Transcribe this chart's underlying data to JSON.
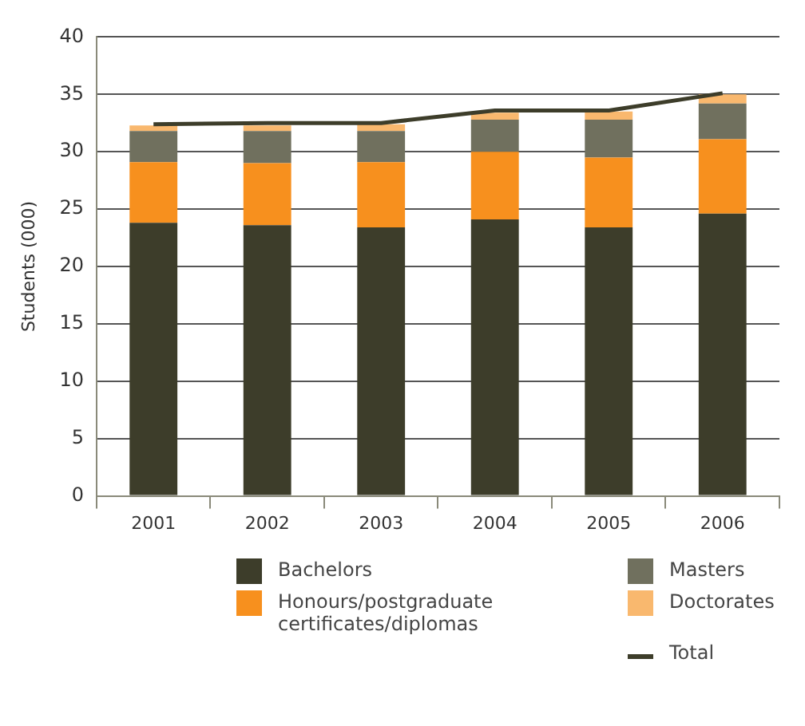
{
  "chart_data": {
    "type": "bar",
    "stacked": true,
    "ylabel": "Students (000)",
    "categories": [
      "2001",
      "2002",
      "2003",
      "2004",
      "2005",
      "2006"
    ],
    "series": [
      {
        "name": "Bachelors",
        "color": "#3d3d2a",
        "values": [
          23.8,
          23.6,
          23.4,
          24.1,
          23.4,
          24.6
        ]
      },
      {
        "name": "Honours/postgraduate certificates/diplomas",
        "color": "#f7901e",
        "values": [
          5.3,
          5.4,
          5.7,
          5.9,
          6.1,
          6.5
        ]
      },
      {
        "name": "Masters",
        "color": "#70705e",
        "values": [
          2.7,
          2.8,
          2.7,
          2.8,
          3.3,
          3.1
        ]
      },
      {
        "name": "Doctorates",
        "color": "#f9b86e",
        "values": [
          0.5,
          0.5,
          0.6,
          0.6,
          0.7,
          0.8
        ]
      },
      {
        "name": "Total",
        "type": "line",
        "color": "#3d3d2a",
        "line_style": "solid",
        "values": [
          32.4,
          32.5,
          32.5,
          33.6,
          33.6,
          35.1
        ]
      }
    ],
    "ylim": [
      0,
      40
    ],
    "yticks": [
      0,
      5,
      10,
      15,
      20,
      25,
      30,
      35,
      40
    ],
    "grid": "y",
    "legend": "bottom",
    "marker": "none"
  }
}
